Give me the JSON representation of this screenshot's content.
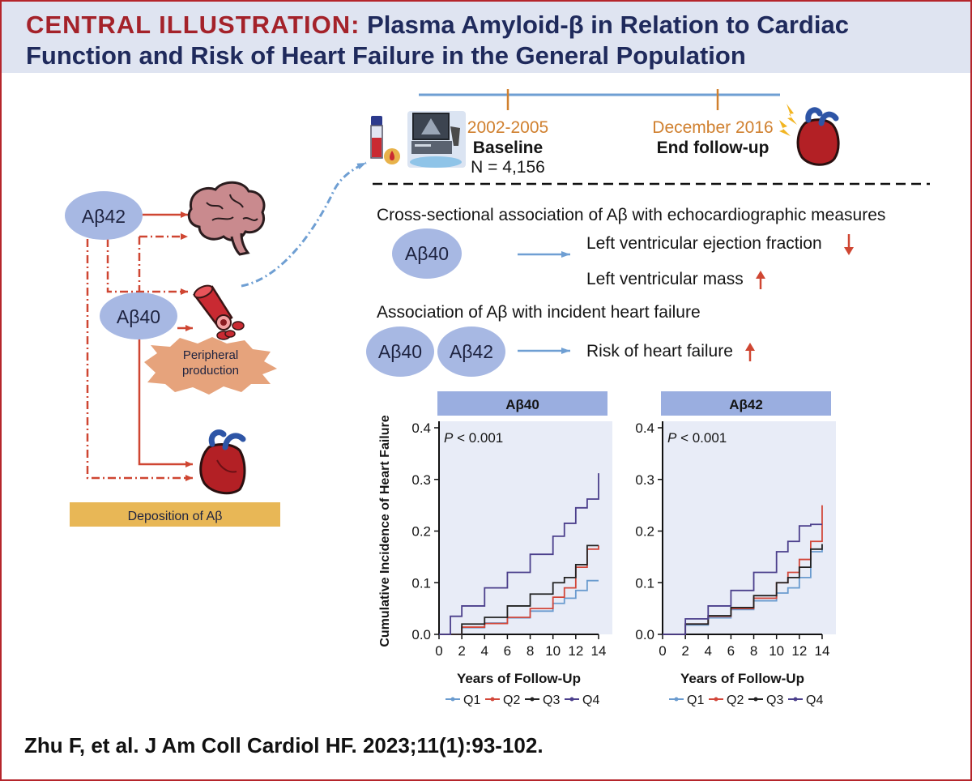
{
  "header": {
    "title_lead": "CENTRAL ILLUSTRATION:",
    "title_rest": " Plasma Amyloid-β in Relation to Cardiac Function and Risk of Heart Failure in the General Population"
  },
  "left": {
    "ab42": "Aβ42",
    "ab40": "Aβ40",
    "peripheral_line1": "Peripheral",
    "peripheral_line2": "production",
    "deposition": "Deposition of  Aβ",
    "icons": [
      "brain-icon",
      "blood-vessel-icon",
      "heart-icon"
    ]
  },
  "timeline": {
    "baseline_years": "2002-2005",
    "baseline_label": "Baseline",
    "baseline_n": "N = 4,156",
    "end_date": "December 2016",
    "end_label": "End follow-up",
    "icons": [
      "blood-tube-icon",
      "echocardiography-machine-icon",
      "heart-failure-icon"
    ]
  },
  "cross_sectional": {
    "heading": "Cross-sectional association of Aβ with echocardiographic measures",
    "marker": "Aβ40",
    "lvef": "Left ventricular ejection fraction",
    "lvef_direction": "down",
    "lvm": "Left ventricular mass",
    "lvm_direction": "up"
  },
  "incident": {
    "heading": "Association of Aβ with incident heart failure",
    "marker1": "Aβ40",
    "marker2": "Aβ42",
    "risk": "Risk of heart failure",
    "risk_direction": "up"
  },
  "chart_data": [
    {
      "type": "line",
      "title": "Aβ40",
      "annotation": "P < 0.001",
      "xlabel": "Years of Follow-Up",
      "ylabel": "Cumulative Incidence of Heart Failure",
      "xlim": [
        0,
        14.5
      ],
      "ylim": [
        0,
        0.4
      ],
      "xticks": [
        "0",
        "2",
        "4",
        "6",
        "8",
        "10",
        "12",
        "14"
      ],
      "yticks": [
        "0.0",
        "0.1",
        "0.2",
        "0.3",
        "0.4"
      ],
      "series": [
        {
          "name": "Q1",
          "color": "#6a9bcf",
          "x": [
            0,
            2,
            4,
            6,
            8,
            10,
            11,
            12,
            13,
            14
          ],
          "y": [
            0,
            0.013,
            0.022,
            0.032,
            0.045,
            0.06,
            0.07,
            0.085,
            0.104,
            0.104
          ]
        },
        {
          "name": "Q2",
          "color": "#d2473a",
          "x": [
            0,
            2,
            4,
            6,
            8,
            10,
            11,
            12,
            13,
            14
          ],
          "y": [
            0,
            0.014,
            0.021,
            0.033,
            0.05,
            0.072,
            0.09,
            0.13,
            0.165,
            0.172
          ]
        },
        {
          "name": "Q3",
          "color": "#222222",
          "x": [
            0,
            2,
            4,
            6,
            8,
            10,
            11,
            12,
            13,
            14
          ],
          "y": [
            0,
            0.02,
            0.033,
            0.055,
            0.078,
            0.1,
            0.11,
            0.135,
            0.172,
            0.172
          ]
        },
        {
          "name": "Q4",
          "color": "#4b3f8c",
          "x": [
            0,
            1,
            2,
            4,
            6,
            8,
            10,
            11,
            12,
            13,
            14
          ],
          "y": [
            0,
            0.035,
            0.055,
            0.09,
            0.12,
            0.155,
            0.19,
            0.215,
            0.245,
            0.262,
            0.312
          ]
        }
      ]
    },
    {
      "type": "line",
      "title": "Aβ42",
      "annotation": "P < 0.001",
      "xlabel": "Years of Follow-Up",
      "ylabel": "",
      "xlim": [
        0,
        14.5
      ],
      "ylim": [
        0,
        0.4
      ],
      "xticks": [
        "0",
        "2",
        "4",
        "6",
        "8",
        "10",
        "12",
        "14"
      ],
      "yticks": [
        "0.0",
        "0.1",
        "0.2",
        "0.3",
        "0.4"
      ],
      "series": [
        {
          "name": "Q1",
          "color": "#6a9bcf",
          "x": [
            0,
            2,
            4,
            6,
            8,
            10,
            11,
            12,
            13,
            14
          ],
          "y": [
            0,
            0.018,
            0.032,
            0.048,
            0.065,
            0.08,
            0.09,
            0.11,
            0.16,
            0.165
          ]
        },
        {
          "name": "Q2",
          "color": "#d2473a",
          "x": [
            0,
            2,
            4,
            6,
            8,
            10,
            11,
            12,
            13,
            14
          ],
          "y": [
            0,
            0.02,
            0.035,
            0.05,
            0.07,
            0.1,
            0.12,
            0.145,
            0.18,
            0.25
          ]
        },
        {
          "name": "Q3",
          "color": "#222222",
          "x": [
            0,
            2,
            4,
            6,
            8,
            10,
            11,
            12,
            13,
            14
          ],
          "y": [
            0,
            0.02,
            0.036,
            0.052,
            0.075,
            0.1,
            0.11,
            0.13,
            0.165,
            0.175
          ]
        },
        {
          "name": "Q4",
          "color": "#4b3f8c",
          "x": [
            0,
            2,
            4,
            6,
            8,
            10,
            11,
            12,
            13,
            14
          ],
          "y": [
            0,
            0.03,
            0.055,
            0.085,
            0.12,
            0.16,
            0.18,
            0.21,
            0.213,
            0.213
          ]
        }
      ]
    }
  ],
  "citation": "Zhu F, et al. J Am Coll Cardiol HF. 2023;11(1):93-102.",
  "colors": {
    "frame": "#b5252b",
    "title_lead": "#a4222a",
    "title_text": "#1f2a5c",
    "header_bg": "#dfe4f1",
    "marker_ellipse": "#a7b8e3",
    "arrow_red": "#cf4632",
    "arrow_blue": "#6f9fd3",
    "timeline_orange": "#d0802f",
    "panel_bg": "#e8ecf7",
    "strip": "#9aaee0",
    "deposition_bar": "#e8b756"
  }
}
